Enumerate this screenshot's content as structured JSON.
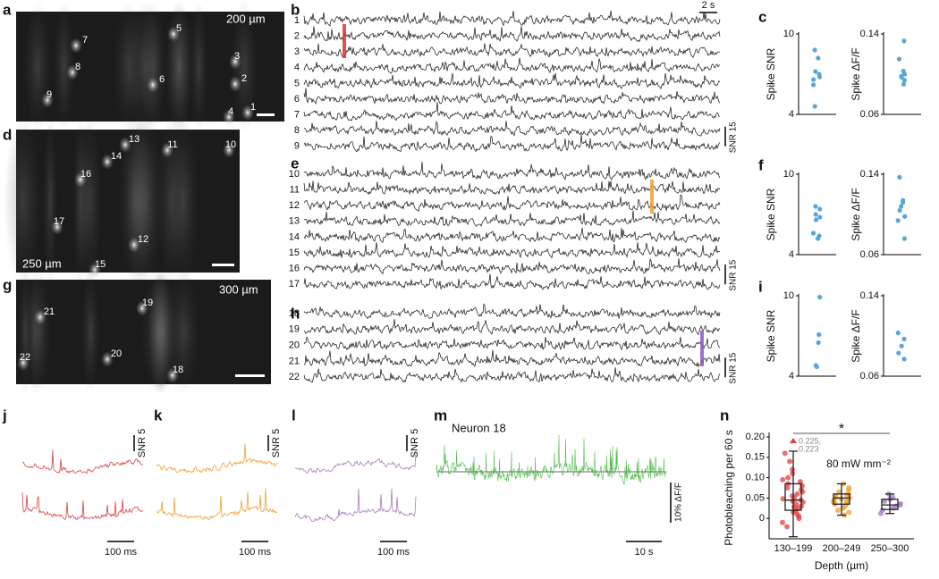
{
  "panels": {
    "a": {
      "label": "a",
      "depth": "200 µm",
      "neurons": [
        "7",
        "8",
        "9",
        "6",
        "5",
        "3",
        "2",
        "1",
        "4"
      ]
    },
    "d": {
      "label": "d",
      "depth": "250 µm",
      "neurons": [
        "13",
        "11",
        "10",
        "14",
        "16",
        "17",
        "12",
        "15"
      ]
    },
    "g": {
      "label": "g",
      "depth": "300 µm",
      "neurons": [
        "21",
        "19",
        "22",
        "20",
        "18"
      ]
    },
    "b": {
      "label": "b",
      "rows": [
        "1",
        "2",
        "3",
        "4",
        "5",
        "6",
        "7",
        "8",
        "9"
      ],
      "time_scale": "2 s",
      "snr_scale": "SNR 15"
    },
    "e": {
      "label": "e",
      "rows": [
        "10",
        "11",
        "12",
        "13",
        "14",
        "15",
        "16",
        "17"
      ],
      "snr_scale": "SNR 15"
    },
    "h": {
      "label": "h",
      "rows": [
        "18",
        "19",
        "20",
        "21",
        "22"
      ],
      "snr_scale": "SNR 15"
    },
    "c": {
      "label": "c"
    },
    "f": {
      "label": "f"
    },
    "i": {
      "label": "i"
    },
    "j": {
      "label": "j",
      "snr_scale": "SNR 5",
      "time_scale": "100 ms"
    },
    "k": {
      "label": "k",
      "snr_scale": "SNR 5",
      "time_scale": "100 ms"
    },
    "l": {
      "label": "l",
      "snr_scale": "SNR 5",
      "time_scale": "100 ms"
    },
    "m": {
      "label": "m",
      "title": "Neuron 18",
      "dff_scale": "10% ΔF/F",
      "time_scale": "10 s"
    },
    "n": {
      "label": "n"
    }
  },
  "chart_data": [
    {
      "type": "strip",
      "ylabel": "Spike SNR",
      "values": [
        8.8,
        8.2,
        7.2,
        7.0,
        6.8,
        6.6,
        6.2,
        4.6
      ],
      "ylim": [
        4,
        10
      ],
      "yticks": [
        4,
        10
      ],
      "color": "#5aa6d8"
    },
    {
      "type": "strip",
      "ylabel": "Spike ΔF/F",
      "values": [
        0.133,
        0.115,
        0.103,
        0.1,
        0.098,
        0.097,
        0.094,
        0.09
      ],
      "ylim": [
        0.06,
        0.14
      ],
      "yticks": [
        0.06,
        0.14
      ],
      "color": "#5aa6d8"
    },
    {
      "type": "strip",
      "ylabel": "Spike SNR",
      "values": [
        7.6,
        7.4,
        7.0,
        6.8,
        6.6,
        5.6,
        5.4,
        5.2
      ],
      "ylim": [
        4,
        10
      ],
      "yticks": [
        4,
        10
      ],
      "color": "#5aa6d8"
    },
    {
      "type": "strip",
      "ylabel": "Spike ΔF/F",
      "values": [
        0.137,
        0.114,
        0.112,
        0.108,
        0.104,
        0.098,
        0.094,
        0.076
      ],
      "ylim": [
        0.06,
        0.14
      ],
      "yticks": [
        0.06,
        0.14
      ],
      "color": "#5aa6d8"
    },
    {
      "type": "strip",
      "ylabel": "Spike SNR",
      "values": [
        9.9,
        7.1,
        6.5,
        4.8,
        4.7
      ],
      "ylim": [
        4,
        10
      ],
      "yticks": [
        4,
        10
      ],
      "color": "#5aa6d8"
    },
    {
      "type": "strip",
      "ylabel": "Spike ΔF/F",
      "values": [
        0.103,
        0.097,
        0.09,
        0.083,
        0.077
      ],
      "ylim": [
        0.06,
        0.14
      ],
      "yticks": [
        0.06,
        0.14
      ],
      "color": "#5aa6d8"
    },
    {
      "type": "box",
      "xlabel": "Depth (µm)",
      "ylabel": "Photobleaching per 60 s",
      "categories": [
        "130–199",
        "200–249",
        "250–300"
      ],
      "colors": [
        "#e0403f",
        "#f0a030",
        "#a77bbd"
      ],
      "boxes": [
        {
          "whislo": -0.045,
          "q1": 0.02,
          "med": 0.045,
          "q3": 0.085,
          "whishi": 0.165,
          "points": [
            0.16,
            0.14,
            0.12,
            0.11,
            0.1,
            0.095,
            0.09,
            0.085,
            0.08,
            0.075,
            0.07,
            0.065,
            0.06,
            0.055,
            0.05,
            0.048,
            0.045,
            0.042,
            0.04,
            0.035,
            0.03,
            0.028,
            0.025,
            0.02,
            0.015,
            0.01,
            0.005,
            0.0,
            -0.01,
            -0.02
          ]
        },
        {
          "whislo": 0.008,
          "q1": 0.035,
          "med": 0.05,
          "q3": 0.06,
          "whishi": 0.085,
          "points": [
            0.085,
            0.075,
            0.07,
            0.065,
            0.06,
            0.058,
            0.055,
            0.052,
            0.05,
            0.048,
            0.045,
            0.042,
            0.04,
            0.038,
            0.035,
            0.03,
            0.025,
            0.02,
            0.015,
            0.008
          ]
        },
        {
          "whislo": 0.012,
          "q1": 0.022,
          "med": 0.033,
          "q3": 0.047,
          "whishi": 0.06,
          "points": [
            0.06,
            0.052,
            0.047,
            0.042,
            0.036,
            0.033,
            0.03,
            0.025,
            0.02,
            0.012
          ]
        }
      ],
      "ylim": [
        -0.05,
        0.2
      ],
      "yticks": [
        0,
        0.05,
        {
          "value": 0.1,
          "label": "0.10"
        },
        0.15,
        {
          "value": 0.2,
          "label": "0.20"
        }
      ],
      "annotations": {
        "significance": "*",
        "outlier_1": "0.225,",
        "outlier_2": "0.223",
        "power": "80 mW mm⁻²"
      }
    }
  ]
}
